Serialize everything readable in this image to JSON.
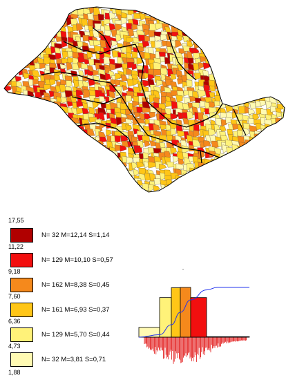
{
  "legend": {
    "top_value": "17,55",
    "classes": [
      {
        "color": "#b00000",
        "stats": "N= 32  M=12,14  S=1,14",
        "lower": "11,22"
      },
      {
        "color": "#f20f0f",
        "stats": "N= 129  M=10,10  S=0,57",
        "lower": "9,18"
      },
      {
        "color": "#f5891c",
        "stats": "N= 162  M=8,38  S=0,45",
        "lower": "7,60"
      },
      {
        "color": "#ffc617",
        "stats": "N= 161  M=6,93  S=0,37",
        "lower": "6,36"
      },
      {
        "color": "#fff279",
        "stats": "N= 129  M=5,70  S=0,44",
        "lower": "4,73"
      },
      {
        "color": "#fffab3",
        "stats": "N= 32  M=3,81  S=0,71",
        "lower": "1,88"
      }
    ]
  },
  "histogram": {
    "bar_counts": [
      32,
      129,
      162,
      161,
      129,
      32
    ],
    "cumulative_color": "#2233ee",
    "distribution_color": "#e11111"
  },
  "map": {
    "border_color": "#000000",
    "fill_colors": [
      "#b00000",
      "#f20f0f",
      "#f5891c",
      "#ffc617",
      "#fff279",
      "#fffab3"
    ]
  }
}
